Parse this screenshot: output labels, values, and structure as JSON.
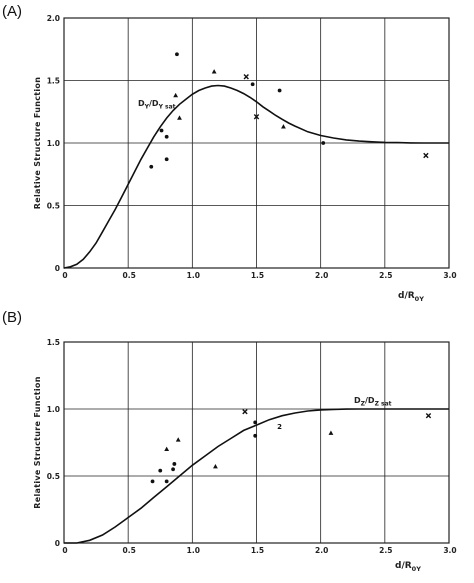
{
  "chart_data": [
    {
      "panel": "(A)",
      "type": "scatter",
      "xlabel": "d/R",
      "xlabel_sub": "0Y",
      "ylabel": "Relative Structure Function",
      "curve_label": "D",
      "curve_label_sub": "Y",
      "curve_label_rest": "/D",
      "curve_label_sub2": "Y sat",
      "xlim": [
        0,
        3.0
      ],
      "ylim": [
        0,
        2.0
      ],
      "xticks": [
        "0",
        "0.5",
        "1.0",
        "1.5",
        "2.0",
        "2.5",
        "3.0"
      ],
      "yticks": [
        "0",
        "0.5",
        "1.0",
        "1.5",
        "2.0"
      ],
      "grid": true,
      "curve": {
        "x": [
          0.0,
          0.05,
          0.1,
          0.15,
          0.2,
          0.25,
          0.3,
          0.35,
          0.4,
          0.45,
          0.5,
          0.55,
          0.6,
          0.65,
          0.7,
          0.75,
          0.8,
          0.85,
          0.9,
          0.95,
          1.0,
          1.05,
          1.1,
          1.15,
          1.2,
          1.25,
          1.3,
          1.35,
          1.4,
          1.45,
          1.5,
          1.55,
          1.6,
          1.65,
          1.7,
          1.75,
          1.8,
          1.9,
          2.0,
          2.1,
          2.2,
          2.3,
          2.4,
          2.5,
          2.6,
          2.7,
          2.8,
          2.9,
          3.0
        ],
        "y": [
          0.0,
          0.01,
          0.03,
          0.07,
          0.13,
          0.2,
          0.29,
          0.38,
          0.47,
          0.57,
          0.67,
          0.77,
          0.87,
          0.96,
          1.05,
          1.13,
          1.2,
          1.26,
          1.31,
          1.35,
          1.39,
          1.42,
          1.44,
          1.455,
          1.46,
          1.455,
          1.44,
          1.42,
          1.395,
          1.365,
          1.33,
          1.29,
          1.255,
          1.22,
          1.19,
          1.16,
          1.135,
          1.09,
          1.06,
          1.04,
          1.025,
          1.015,
          1.01,
          1.005,
          1.003,
          1.001,
          1.0,
          1.0,
          1.0
        ]
      },
      "points": [
        {
          "x": 0.68,
          "y": 0.81,
          "m": "o"
        },
        {
          "x": 0.76,
          "y": 1.1,
          "m": "o"
        },
        {
          "x": 0.8,
          "y": 1.05,
          "m": "o"
        },
        {
          "x": 0.8,
          "y": 0.87,
          "m": "o"
        },
        {
          "x": 0.88,
          "y": 1.71,
          "m": "o"
        },
        {
          "x": 0.87,
          "y": 1.38,
          "m": "^"
        },
        {
          "x": 0.9,
          "y": 1.2,
          "m": "^"
        },
        {
          "x": 1.17,
          "y": 1.57,
          "m": "^"
        },
        {
          "x": 1.42,
          "y": 1.53,
          "m": "x"
        },
        {
          "x": 1.47,
          "y": 1.47,
          "m": "o"
        },
        {
          "x": 1.5,
          "y": 1.21,
          "m": "x"
        },
        {
          "x": 1.68,
          "y": 1.42,
          "m": "o"
        },
        {
          "x": 1.71,
          "y": 1.13,
          "m": "^"
        },
        {
          "x": 2.02,
          "y": 1.0,
          "m": "o"
        },
        {
          "x": 2.82,
          "y": 0.9,
          "m": "x"
        }
      ]
    },
    {
      "panel": "(B)",
      "type": "scatter",
      "xlabel": "d/R",
      "xlabel_sub": "0Y",
      "ylabel": "Relative Structure Function",
      "curve_label": "D",
      "curve_label_sub": "Z",
      "curve_label_rest": "/D",
      "curve_label_sub2": "Z sat",
      "xlim": [
        0,
        3.0
      ],
      "ylim": [
        0,
        1.5
      ],
      "xticks": [
        "0",
        "0.5",
        "1.0",
        "1.5",
        "2.0",
        "2.5",
        "3.0"
      ],
      "yticks": [
        "0",
        "0.5",
        "1.0",
        "1.5"
      ],
      "grid": true,
      "curve": {
        "x": [
          0.0,
          0.1,
          0.2,
          0.3,
          0.4,
          0.5,
          0.6,
          0.7,
          0.8,
          0.9,
          1.0,
          1.1,
          1.2,
          1.3,
          1.4,
          1.5,
          1.6,
          1.7,
          1.8,
          1.9,
          2.0,
          2.1,
          2.2,
          2.3,
          2.4,
          2.5,
          2.6,
          2.7,
          2.8,
          2.9,
          3.0
        ],
        "y": [
          0.0,
          0.0,
          0.02,
          0.06,
          0.12,
          0.19,
          0.26,
          0.34,
          0.42,
          0.5,
          0.58,
          0.65,
          0.72,
          0.78,
          0.84,
          0.88,
          0.92,
          0.95,
          0.97,
          0.985,
          0.993,
          0.997,
          0.999,
          1.0,
          1.0,
          1.0,
          1.0,
          1.0,
          1.0,
          1.0,
          1.0
        ]
      },
      "points": [
        {
          "x": 0.69,
          "y": 0.46,
          "m": "o"
        },
        {
          "x": 0.75,
          "y": 0.54,
          "m": "o"
        },
        {
          "x": 0.8,
          "y": 0.46,
          "m": "o"
        },
        {
          "x": 0.85,
          "y": 0.55,
          "m": "o"
        },
        {
          "x": 0.86,
          "y": 0.59,
          "m": "o"
        },
        {
          "x": 0.8,
          "y": 0.7,
          "m": "^"
        },
        {
          "x": 0.89,
          "y": 0.77,
          "m": "^"
        },
        {
          "x": 1.18,
          "y": 0.57,
          "m": "^"
        },
        {
          "x": 1.41,
          "y": 0.98,
          "m": "x"
        },
        {
          "x": 1.49,
          "y": 0.8,
          "m": "o"
        },
        {
          "x": 1.49,
          "y": 0.9,
          "m": "o"
        },
        {
          "x": 1.68,
          "y": 0.87,
          "m": "2"
        },
        {
          "x": 2.08,
          "y": 0.82,
          "m": "^"
        },
        {
          "x": 2.84,
          "y": 0.95,
          "m": "x"
        }
      ]
    }
  ]
}
